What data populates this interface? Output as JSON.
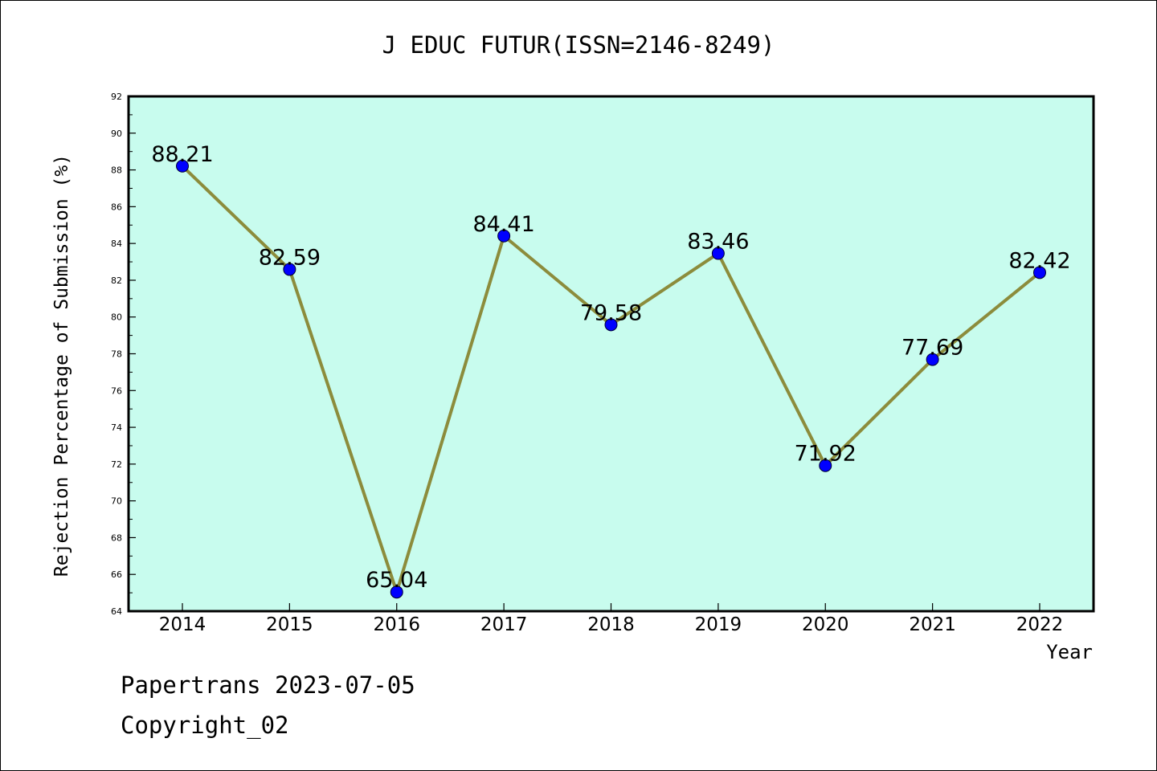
{
  "chart_data": {
    "type": "line",
    "title": "J EDUC FUTUR(ISSN=2146-8249)",
    "xlabel": "Year",
    "ylabel": "Rejection Percentage of Submission (%)",
    "categories": [
      "2014",
      "2015",
      "2016",
      "2017",
      "2018",
      "2019",
      "2020",
      "2021",
      "2022"
    ],
    "values": [
      88.21,
      82.59,
      65.04,
      84.41,
      79.58,
      83.46,
      71.92,
      77.69,
      82.42
    ],
    "data_labels": [
      "88.21",
      "82.59",
      "65.04",
      "84.41",
      "79.58",
      "83.46",
      "71.92",
      "77.69",
      "82.42"
    ],
    "ylim": [
      64,
      92
    ],
    "yticks": [
      64,
      66,
      68,
      70,
      72,
      74,
      76,
      78,
      80,
      82,
      84,
      86,
      88,
      90,
      92
    ],
    "grid": false,
    "legend": "none",
    "colors": {
      "plot_background": "#c8fcee",
      "line": "#8c8c3c",
      "marker": "#0000ff"
    }
  },
  "footer": {
    "line1": "Papertrans 2023-07-05",
    "line2": "Copyright_02"
  }
}
